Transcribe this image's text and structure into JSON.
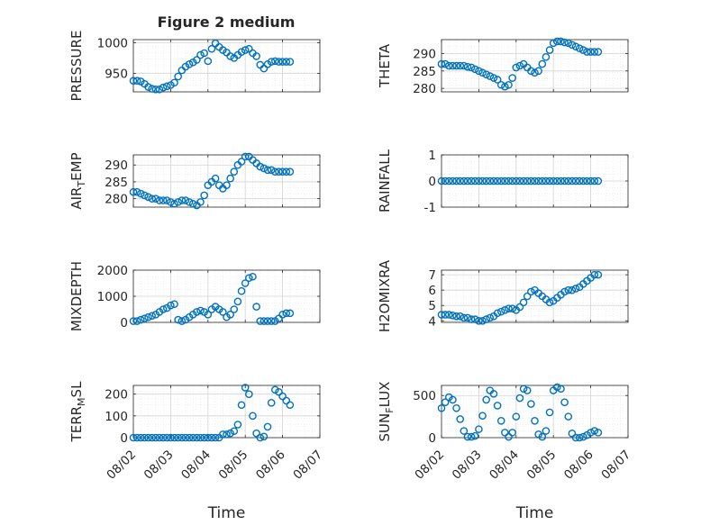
{
  "figure": {
    "title": "Figure 2 medium"
  },
  "chart_data": [
    {
      "type": "scatter",
      "ylabel": "PRESSURE",
      "xlabel": "",
      "xlim": [
        "08/02",
        "08/07"
      ],
      "ylim": [
        920,
        1005
      ],
      "yticks": [
        950,
        1000
      ],
      "xtick_labels": [],
      "grid": true,
      "marker_color": "#0072BD",
      "x_dates": [
        0.0,
        0.1,
        0.2,
        0.3,
        0.4,
        0.5,
        0.6,
        0.7,
        0.8,
        0.9,
        1.0,
        1.1,
        1.2,
        1.3,
        1.4,
        1.5,
        1.6,
        1.7,
        1.8,
        1.9,
        2.0,
        2.1,
        2.2,
        2.3,
        2.4,
        2.5,
        2.6,
        2.7,
        2.8,
        2.9,
        3.0,
        3.1,
        3.2,
        3.3,
        3.4,
        3.5,
        3.6,
        3.7,
        3.8,
        3.9,
        4.0,
        4.1,
        4.2
      ],
      "y": [
        938,
        938,
        937,
        933,
        928,
        925,
        924,
        924,
        927,
        929,
        931,
        935,
        945,
        955,
        961,
        965,
        968,
        972,
        980,
        983,
        970,
        990,
        999,
        993,
        988,
        984,
        978,
        975,
        980,
        985,
        988,
        990,
        983,
        978,
        964,
        958,
        965,
        969,
        970,
        969,
        969,
        969,
        969
      ]
    },
    {
      "type": "scatter",
      "ylabel": "THETA",
      "xlabel": "",
      "xlim": [
        "08/02",
        "08/07"
      ],
      "ylim": [
        279,
        294
      ],
      "yticks": [
        280,
        285,
        290
      ],
      "xtick_labels": [],
      "grid": true,
      "marker_color": "#0072BD",
      "x_dates": [
        0.0,
        0.1,
        0.2,
        0.3,
        0.4,
        0.5,
        0.6,
        0.7,
        0.8,
        0.9,
        1.0,
        1.1,
        1.2,
        1.3,
        1.4,
        1.5,
        1.6,
        1.7,
        1.8,
        1.9,
        2.0,
        2.1,
        2.2,
        2.3,
        2.4,
        2.5,
        2.6,
        2.7,
        2.8,
        2.9,
        3.0,
        3.1,
        3.2,
        3.3,
        3.4,
        3.5,
        3.6,
        3.7,
        3.8,
        3.9,
        4.0,
        4.1,
        4.2
      ],
      "y": [
        287,
        287,
        286.5,
        286.5,
        286.5,
        286.5,
        286.5,
        286.2,
        286,
        285.5,
        285,
        284.5,
        284,
        283.5,
        283,
        282.5,
        281,
        280.5,
        281,
        283,
        286,
        286.5,
        287,
        286,
        285,
        284.5,
        285,
        287,
        289,
        291,
        293,
        293.5,
        293.5,
        293.2,
        293,
        292.5,
        292,
        291.5,
        291,
        290.5,
        290.5,
        290.5,
        290.5
      ]
    },
    {
      "type": "scatter",
      "ylabel": "AIR_TEMP",
      "xlabel": "",
      "xlim": [
        "08/02",
        "08/07"
      ],
      "ylim": [
        277.5,
        293
      ],
      "yticks": [
        280,
        285,
        290
      ],
      "xtick_labels": [],
      "grid": true,
      "marker_color": "#0072BD",
      "x_dates": [
        0.0,
        0.1,
        0.2,
        0.3,
        0.4,
        0.5,
        0.6,
        0.7,
        0.8,
        0.9,
        1.0,
        1.1,
        1.2,
        1.3,
        1.4,
        1.5,
        1.6,
        1.7,
        1.8,
        1.9,
        2.0,
        2.1,
        2.2,
        2.3,
        2.4,
        2.5,
        2.6,
        2.7,
        2.8,
        2.9,
        3.0,
        3.1,
        3.2,
        3.3,
        3.4,
        3.5,
        3.6,
        3.7,
        3.8,
        3.9,
        4.0,
        4.1,
        4.2
      ],
      "y": [
        282,
        282,
        281.5,
        281,
        280.5,
        280,
        280,
        279.5,
        279.5,
        279.5,
        279,
        278.5,
        279,
        279.5,
        279.5,
        279,
        278.5,
        278,
        279,
        281,
        284,
        285,
        286,
        284,
        283,
        284,
        286,
        288,
        290,
        291,
        292.5,
        292.5,
        291.5,
        290.5,
        289.5,
        289,
        288.5,
        288.5,
        288,
        288,
        288,
        288,
        288
      ]
    },
    {
      "type": "scatter",
      "ylabel": "RAINFALL",
      "xlabel": "",
      "xlim": [
        "08/02",
        "08/07"
      ],
      "ylim": [
        -1,
        1
      ],
      "yticks": [
        -1,
        0,
        1
      ],
      "xtick_labels": [],
      "grid": true,
      "marker_color": "#0072BD",
      "x_dates": [
        0.0,
        0.1,
        0.2,
        0.3,
        0.4,
        0.5,
        0.6,
        0.7,
        0.8,
        0.9,
        1.0,
        1.1,
        1.2,
        1.3,
        1.4,
        1.5,
        1.6,
        1.7,
        1.8,
        1.9,
        2.0,
        2.1,
        2.2,
        2.3,
        2.4,
        2.5,
        2.6,
        2.7,
        2.8,
        2.9,
        3.0,
        3.1,
        3.2,
        3.3,
        3.4,
        3.5,
        3.6,
        3.7,
        3.8,
        3.9,
        4.0,
        4.1,
        4.2
      ],
      "y": [
        0,
        0,
        0,
        0,
        0,
        0,
        0,
        0,
        0,
        0,
        0,
        0,
        0,
        0,
        0,
        0,
        0,
        0,
        0,
        0,
        0,
        0,
        0,
        0,
        0,
        0,
        0,
        0,
        0,
        0,
        0,
        0,
        0,
        0,
        0,
        0,
        0,
        0,
        0,
        0,
        0,
        0,
        0
      ]
    },
    {
      "type": "scatter",
      "ylabel": "MIXDEPTH",
      "xlabel": "",
      "xlim": [
        "08/02",
        "08/07"
      ],
      "ylim": [
        0,
        2000
      ],
      "yticks": [
        0,
        1000,
        2000
      ],
      "xtick_labels": [],
      "grid": true,
      "marker_color": "#0072BD",
      "x_dates": [
        0.0,
        0.1,
        0.2,
        0.3,
        0.4,
        0.5,
        0.6,
        0.7,
        0.8,
        0.9,
        1.0,
        1.1,
        1.2,
        1.3,
        1.4,
        1.5,
        1.6,
        1.7,
        1.8,
        1.9,
        2.0,
        2.1,
        2.2,
        2.3,
        2.4,
        2.5,
        2.6,
        2.7,
        2.8,
        2.9,
        3.0,
        3.1,
        3.2,
        3.3,
        3.4,
        3.5,
        3.6,
        3.7,
        3.8,
        3.9,
        4.0,
        4.1,
        4.2
      ],
      "y": [
        50,
        50,
        100,
        150,
        200,
        250,
        300,
        400,
        500,
        550,
        650,
        700,
        100,
        50,
        100,
        200,
        300,
        400,
        450,
        400,
        300,
        500,
        600,
        500,
        400,
        200,
        300,
        500,
        800,
        1200,
        1500,
        1700,
        1750,
        600,
        50,
        50,
        50,
        50,
        50,
        150,
        300,
        350,
        350
      ]
    },
    {
      "type": "scatter",
      "ylabel": "H2OMIXRA",
      "xlabel": "",
      "xlim": [
        "08/02",
        "08/07"
      ],
      "ylim": [
        3.9,
        7.3
      ],
      "yticks": [
        4,
        5,
        6,
        7
      ],
      "xtick_labels": [],
      "grid": true,
      "marker_color": "#0072BD",
      "x_dates": [
        0.0,
        0.1,
        0.2,
        0.3,
        0.4,
        0.5,
        0.6,
        0.7,
        0.8,
        0.9,
        1.0,
        1.1,
        1.2,
        1.3,
        1.4,
        1.5,
        1.6,
        1.7,
        1.8,
        1.9,
        2.0,
        2.1,
        2.2,
        2.3,
        2.4,
        2.5,
        2.6,
        2.7,
        2.8,
        2.9,
        3.0,
        3.1,
        3.2,
        3.3,
        3.4,
        3.5,
        3.6,
        3.7,
        3.8,
        3.9,
        4.0,
        4.1,
        4.2
      ],
      "y": [
        4.4,
        4.4,
        4.4,
        4.35,
        4.3,
        4.3,
        4.2,
        4.2,
        4.1,
        4.1,
        4.0,
        4.0,
        4.1,
        4.2,
        4.3,
        4.5,
        4.6,
        4.7,
        4.8,
        4.8,
        4.7,
        4.9,
        5.2,
        5.6,
        5.9,
        6.0,
        5.8,
        5.6,
        5.4,
        5.2,
        5.3,
        5.5,
        5.7,
        5.9,
        6.0,
        6.0,
        6.1,
        6.2,
        6.4,
        6.6,
        6.8,
        7.0,
        7.0
      ]
    },
    {
      "type": "scatter",
      "ylabel": "TERR_MSL",
      "xlabel": "Time",
      "xlim": [
        "08/02",
        "08/07"
      ],
      "ylim": [
        0,
        240
      ],
      "yticks": [
        0,
        100,
        200
      ],
      "xtick_labels": [
        "08/02",
        "08/03",
        "08/04",
        "08/05",
        "08/06",
        "08/07"
      ],
      "grid": true,
      "marker_color": "#0072BD",
      "x_dates": [
        0.0,
        0.1,
        0.2,
        0.3,
        0.4,
        0.5,
        0.6,
        0.7,
        0.8,
        0.9,
        1.0,
        1.1,
        1.2,
        1.3,
        1.4,
        1.5,
        1.6,
        1.7,
        1.8,
        1.9,
        2.0,
        2.1,
        2.2,
        2.3,
        2.4,
        2.5,
        2.6,
        2.7,
        2.8,
        2.9,
        3.0,
        3.1,
        3.2,
        3.3,
        3.4,
        3.5,
        3.6,
        3.7,
        3.8,
        3.9,
        4.0,
        4.1,
        4.2
      ],
      "y": [
        0,
        0,
        0,
        0,
        0,
        0,
        0,
        0,
        0,
        0,
        0,
        0,
        0,
        0,
        0,
        0,
        0,
        0,
        0,
        0,
        0,
        0,
        0,
        0,
        15,
        15,
        20,
        30,
        60,
        150,
        230,
        200,
        100,
        20,
        0,
        5,
        50,
        160,
        220,
        210,
        190,
        170,
        150
      ]
    },
    {
      "type": "scatter",
      "ylabel": "SUN_FLUX",
      "xlabel": "Time",
      "xlim": [
        "08/02",
        "08/07"
      ],
      "ylim": [
        0,
        620
      ],
      "yticks": [
        0,
        500
      ],
      "xtick_labels": [
        "08/02",
        "08/03",
        "08/04",
        "08/05",
        "08/06",
        "08/07"
      ],
      "grid": true,
      "marker_color": "#0072BD",
      "x_dates": [
        0.0,
        0.1,
        0.2,
        0.3,
        0.4,
        0.5,
        0.6,
        0.7,
        0.8,
        0.9,
        1.0,
        1.1,
        1.2,
        1.3,
        1.4,
        1.5,
        1.6,
        1.7,
        1.8,
        1.9,
        2.0,
        2.1,
        2.2,
        2.3,
        2.4,
        2.5,
        2.6,
        2.7,
        2.8,
        2.9,
        3.0,
        3.1,
        3.2,
        3.3,
        3.4,
        3.5,
        3.6,
        3.7,
        3.8,
        3.9,
        4.0,
        4.1,
        4.2
      ],
      "y": [
        350,
        420,
        480,
        450,
        350,
        220,
        80,
        10,
        10,
        20,
        100,
        260,
        450,
        560,
        520,
        380,
        200,
        60,
        10,
        60,
        250,
        470,
        580,
        560,
        400,
        200,
        40,
        10,
        80,
        300,
        560,
        600,
        580,
        420,
        250,
        50,
        0,
        0,
        10,
        30,
        60,
        80,
        60
      ]
    }
  ]
}
